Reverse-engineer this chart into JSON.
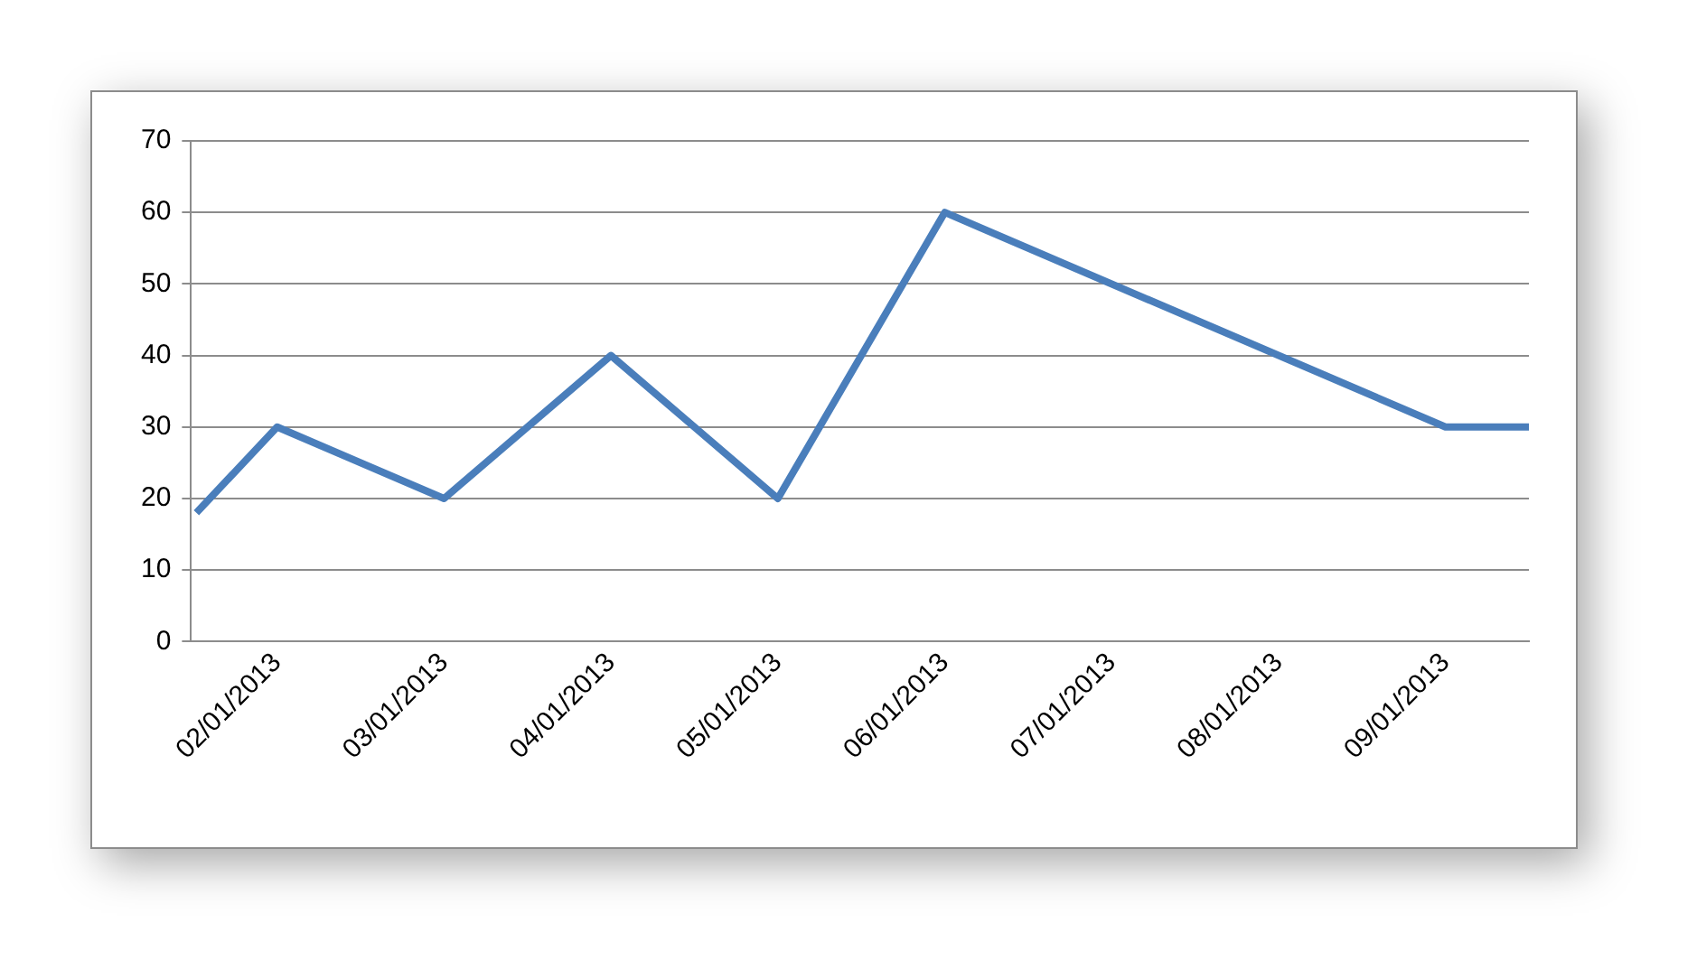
{
  "chart_data": {
    "type": "line",
    "x": [
      "2013-01-17",
      "2013-02-01",
      "2013-03-01",
      "2013-04-01",
      "2013-05-01",
      "2013-06-01",
      "2013-09-01",
      "2013-09-16"
    ],
    "series": [
      {
        "color": "#4a7ebb",
        "values": [
          18,
          30,
          20,
          40,
          20,
          60,
          30,
          30
        ]
      }
    ],
    "xlim": [
      "2013-01-16",
      "2013-09-16"
    ],
    "xticks": [
      {
        "value": "2013-02-01",
        "label": "02/01/2013"
      },
      {
        "value": "2013-03-01",
        "label": "03/01/2013"
      },
      {
        "value": "2013-04-01",
        "label": "04/01/2013"
      },
      {
        "value": "2013-05-01",
        "label": "05/01/2013"
      },
      {
        "value": "2013-06-01",
        "label": "06/01/2013"
      },
      {
        "value": "2013-07-01",
        "label": "07/01/2013"
      },
      {
        "value": "2013-08-01",
        "label": "08/01/2013"
      },
      {
        "value": "2013-09-01",
        "label": "09/01/2013"
      }
    ],
    "ylim": [
      0,
      70
    ],
    "yticks": [
      0,
      10,
      20,
      30,
      40,
      50,
      60,
      70
    ],
    "grid": "y",
    "legend": false,
    "marker": "none",
    "line_style": "solid"
  }
}
